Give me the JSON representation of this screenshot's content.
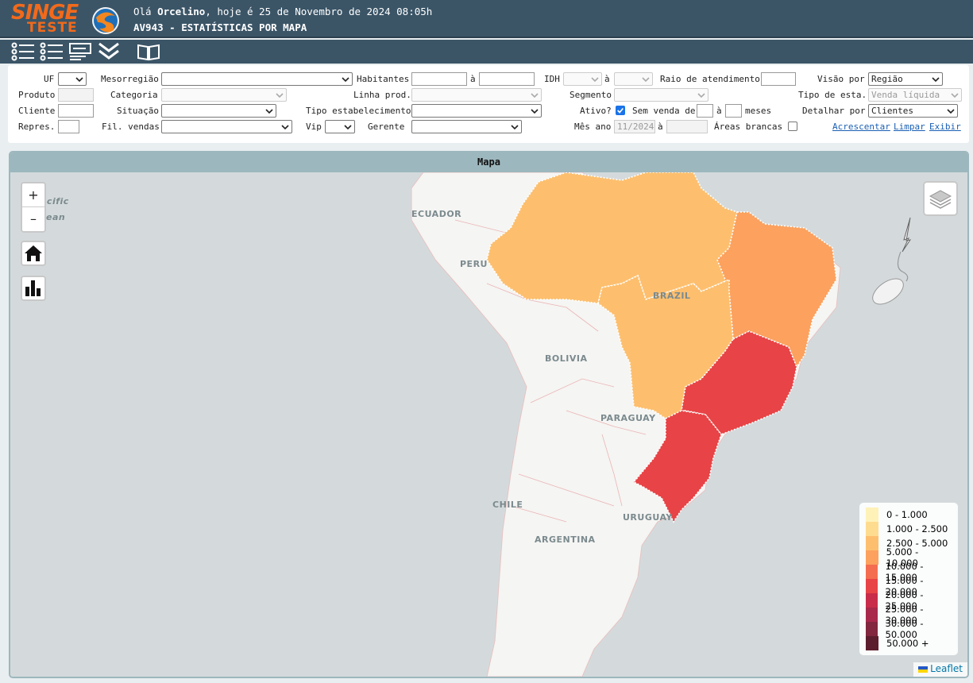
{
  "header": {
    "logo_primary": "SINGE",
    "logo_secondary": "TESTE",
    "greeting_prefix": "Olá",
    "user_name": "Orcelino",
    "greeting_suffix": ", hoje é 25 de Novembro de 2024 08:05h",
    "page_title": "AV943 - ESTATÍSTICAS POR MAPA"
  },
  "toolbar": {
    "icons": [
      "list-icon",
      "checklist-icon",
      "report-icon",
      "double-chevron-icon",
      "book-icon"
    ]
  },
  "filters": {
    "uf_label": "UF",
    "mesorregiao_label": "Mesorregião",
    "habitantes_label": "Habitantes",
    "a1": "à",
    "idh_label": "IDH",
    "a2": "à",
    "raio_label": "Raio de atendimento",
    "visao_label": "Visão por",
    "visao_value": "Região",
    "produto_label": "Produto",
    "categoria_label": "Categoria",
    "linha_label": "Linha prod.",
    "segmento_label": "Segmento",
    "tipo_esta_label": "Tipo de esta.",
    "tipo_esta_value": "Venda líquida",
    "cliente_label": "Cliente",
    "situacao_label": "Situação",
    "tipo_estab_label": "Tipo estabelecimento",
    "ativo_label": "Ativo?",
    "sem_venda_label": "Sem venda de",
    "a3": "à",
    "meses_label": "meses",
    "detalhar_label": "Detalhar por",
    "detalhar_value": "Clientes",
    "repres_label": "Repres.",
    "fil_vendas_label": "Fil. vendas",
    "vip_label": "Vip",
    "gerente_label": "Gerente",
    "mes_ano_label": "Mês ano",
    "mes_ano_value": "11/2024",
    "a4": "à",
    "areas_brancas_label": "Áreas brancas",
    "links": {
      "acrescentar": "Acrescentar",
      "limpar": "Limpar",
      "exibir": "Exibir"
    }
  },
  "map": {
    "title": "Mapa",
    "zoom_in": "+",
    "zoom_out": "–",
    "labels": {
      "ocean_1": "acific",
      "ocean_2": "cean",
      "ecuador": "ECUADOR",
      "peru": "PERU",
      "brazil": "BRAZIL",
      "bolivia": "BOLIVIA",
      "paraguay": "PARAGUAY",
      "chile": "CHILE",
      "uruguay": "URUGUAY",
      "argentina": "ARGENTINA"
    },
    "region_colors": {
      "norte": "#fdbf6e",
      "nordeste": "#fca15e",
      "centro_oeste": "#fdbf6e",
      "sudeste": "#e84346",
      "sul": "#e84346"
    },
    "legend": [
      {
        "label": "0 - 1.000",
        "color": "#fff2b8"
      },
      {
        "label": "1.000 - 2.500",
        "color": "#fedc8f"
      },
      {
        "label": "2.500 - 5.000",
        "color": "#fdbf6e"
      },
      {
        "label": "5.000 - 10.000",
        "color": "#fca15e"
      },
      {
        "label": "10.000 - 15.000",
        "color": "#f46d50"
      },
      {
        "label": "15.000 - 20.000",
        "color": "#e84346"
      },
      {
        "label": "20.000 - 25.000",
        "color": "#c92c4a"
      },
      {
        "label": "25.000 - 30.000",
        "color": "#a8294c"
      },
      {
        "label": "30.000 - 50.000",
        "color": "#82273f"
      },
      {
        "label": "50.000 +",
        "color": "#5c1e2e"
      }
    ],
    "attribution": "Leaflet"
  }
}
